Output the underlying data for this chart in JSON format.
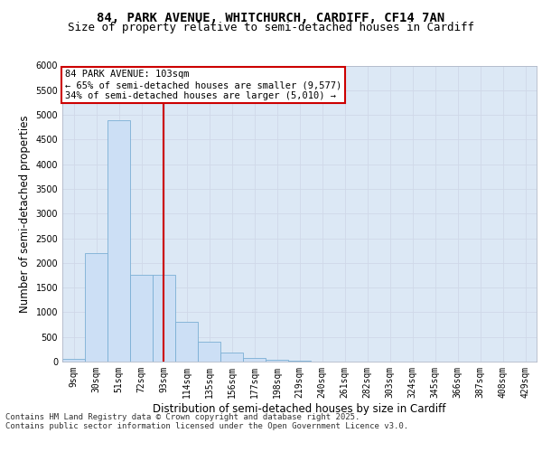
{
  "title_line1": "84, PARK AVENUE, WHITCHURCH, CARDIFF, CF14 7AN",
  "title_line2": "Size of property relative to semi-detached houses in Cardiff",
  "xlabel": "Distribution of semi-detached houses by size in Cardiff",
  "ylabel": "Number of semi-detached properties",
  "footer_line1": "Contains HM Land Registry data © Crown copyright and database right 2025.",
  "footer_line2": "Contains public sector information licensed under the Open Government Licence v3.0.",
  "annotation_line1": "84 PARK AVENUE: 103sqm",
  "annotation_line2": "← 65% of semi-detached houses are smaller (9,577)",
  "annotation_line3": "34% of semi-detached houses are larger (5,010) →",
  "bar_labels": [
    "9sqm",
    "30sqm",
    "51sqm",
    "72sqm",
    "93sqm",
    "114sqm",
    "135sqm",
    "156sqm",
    "177sqm",
    "198sqm",
    "219sqm",
    "240sqm",
    "261sqm",
    "282sqm",
    "303sqm",
    "324sqm",
    "345sqm",
    "366sqm",
    "387sqm",
    "408sqm",
    "429sqm"
  ],
  "bar_values": [
    50,
    2200,
    4900,
    1750,
    1750,
    800,
    400,
    175,
    80,
    30,
    10,
    5,
    3,
    2,
    1,
    1,
    0,
    0,
    0,
    0,
    0
  ],
  "bar_color": "#ccdff5",
  "bar_edge_color": "#7bafd4",
  "vline_color": "#cc0000",
  "vline_pos": 3.476,
  "ylim": [
    0,
    6000
  ],
  "yticks": [
    0,
    500,
    1000,
    1500,
    2000,
    2500,
    3000,
    3500,
    4000,
    4500,
    5000,
    5500,
    6000
  ],
  "grid_color": "#d0d8e8",
  "background_color": "#dce8f5",
  "annotation_box_color": "#ffffff",
  "annotation_box_edge": "#cc0000",
  "title_fontsize": 10,
  "subtitle_fontsize": 9,
  "axis_label_fontsize": 8.5,
  "tick_fontsize": 7,
  "annotation_fontsize": 7.5,
  "footer_fontsize": 6.5
}
